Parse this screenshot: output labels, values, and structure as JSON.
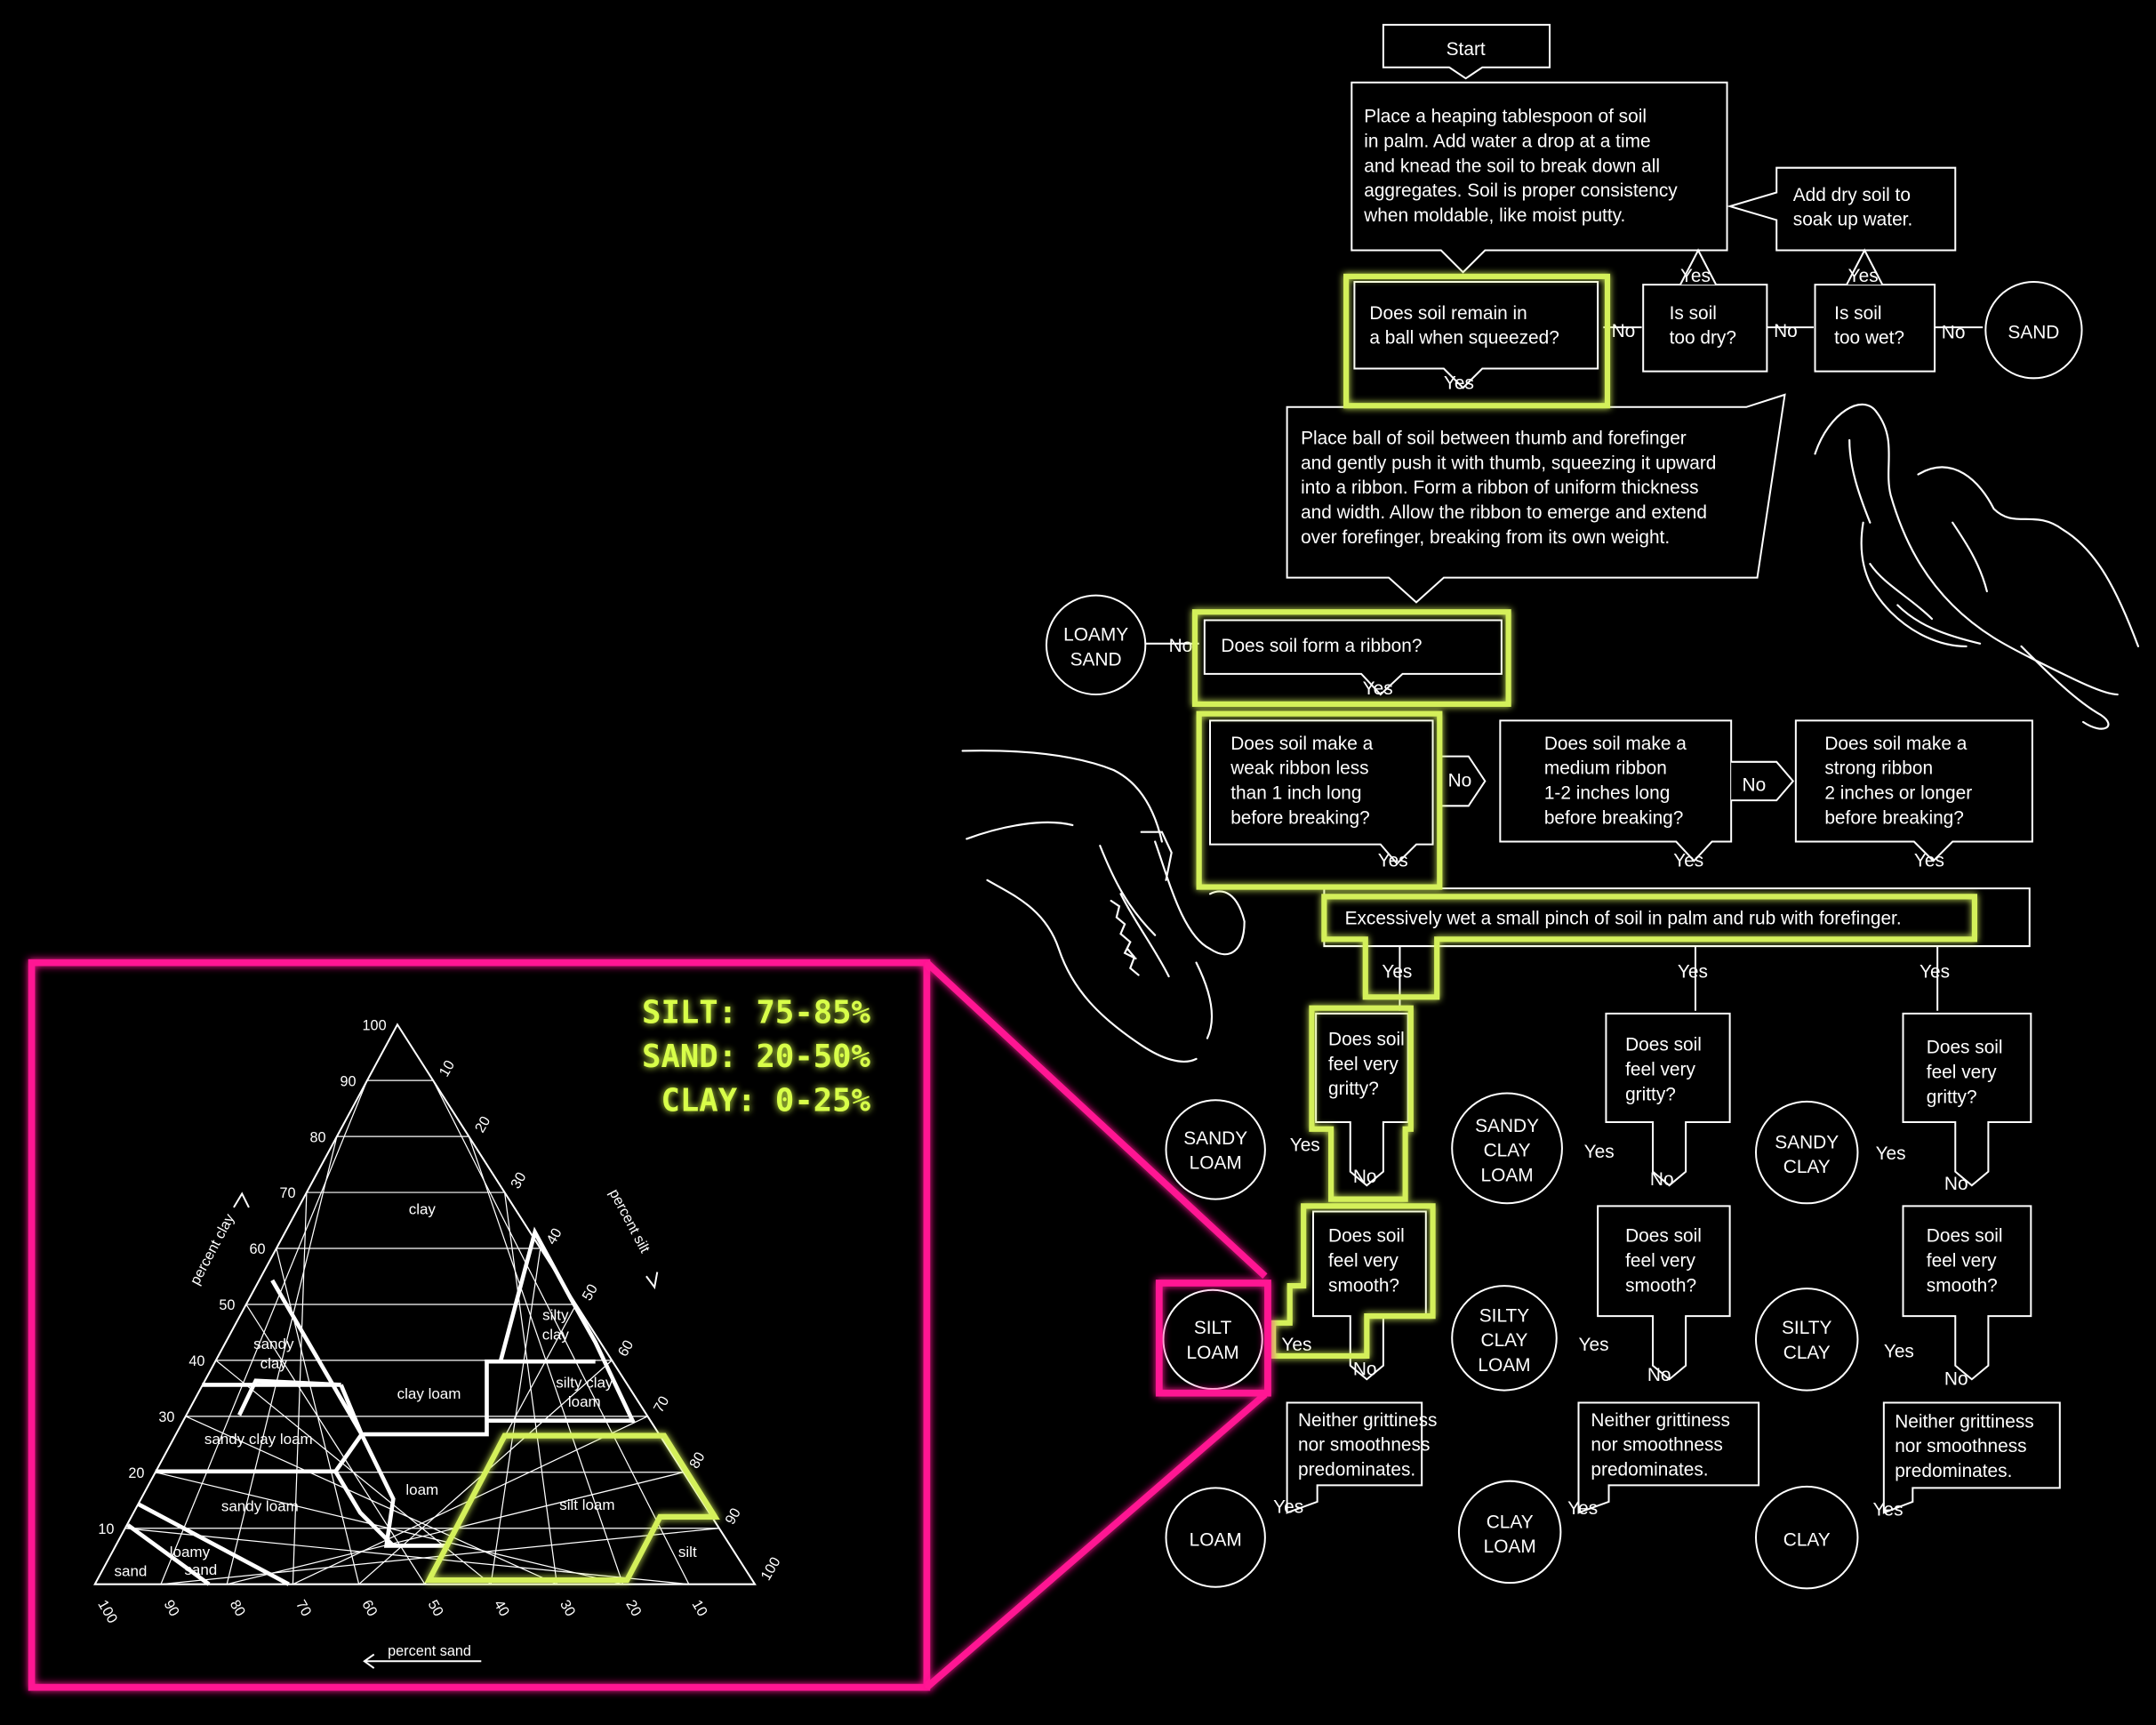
{
  "flowchart": {
    "start": "Start",
    "step1": [
      "Place a heaping tablespoon of soil",
      "in palm.  Add water a drop at a time",
      "and knead the soil to break down all",
      "aggregates.  Soil is proper consistency",
      "when moldable, like moist putty."
    ],
    "add_dry": [
      "Add dry soil to",
      "soak up water."
    ],
    "q_ball": [
      "Does soil remain in",
      "a ball when squeezed?"
    ],
    "q_too_dry": [
      "Is soil",
      "too dry?"
    ],
    "q_too_wet": [
      "Is soil",
      "too wet?"
    ],
    "sand": "SAND",
    "step2": [
      "Place ball of soil between thumb and forefinger",
      "and gently push it with thumb, squeezing it upward",
      "into a ribbon. Form a ribbon of uniform thickness",
      "and width. Allow the ribbon to emerge and extend",
      "over forefinger, breaking from its own weight."
    ],
    "loamy_sand": [
      "LOAMY",
      "SAND"
    ],
    "q_ribbon": "Does soil form a ribbon?",
    "q_weak": [
      "Does soil make a",
      "weak ribbon less",
      "than 1 inch long",
      "before breaking?"
    ],
    "q_medium": [
      "Does soil make a",
      "medium ribbon",
      "1-2 inches long",
      "before breaking?"
    ],
    "q_strong": [
      "Does soil make a",
      "strong ribbon",
      "2 inches or longer",
      "before breaking?"
    ],
    "step3": "Excessively wet a small pinch of soil in palm and rub with forefinger.",
    "q_gritty": [
      "Does soil",
      "feel very",
      "gritty?"
    ],
    "q_smooth": [
      "Does soil",
      "feel very",
      "smooth?"
    ],
    "neither": [
      "Neither grittiness",
      "nor smoothness",
      "predominates."
    ],
    "res": {
      "sandy_loam": [
        "SANDY",
        "LOAM"
      ],
      "sandy_clay_loam": [
        "SANDY",
        "CLAY",
        "LOAM"
      ],
      "sandy_clay": [
        "SANDY",
        "CLAY"
      ],
      "silt_loam": [
        "SILT",
        "LOAM"
      ],
      "silty_clay_loam": [
        "SILTY",
        "CLAY",
        "LOAM"
      ],
      "silty_clay": [
        "SILTY",
        "CLAY"
      ],
      "loam": "LOAM",
      "clay_loam": [
        "CLAY",
        "LOAM"
      ],
      "clay": "CLAY"
    },
    "yes": "Yes",
    "no": "No"
  },
  "inset": {
    "stats": [
      "SILT: 75-85%",
      "SAND: 20-50%",
      "CLAY: 0-25%"
    ],
    "ticks": [
      "100",
      "90",
      "80",
      "70",
      "60",
      "50",
      "40",
      "30",
      "20",
      "10"
    ],
    "axis_clay": "percent clay",
    "axis_silt": "percent silt",
    "axis_sand": "percent sand",
    "regions": {
      "clay": "clay",
      "sandy_clay": [
        "sandy",
        "clay"
      ],
      "silty_clay": [
        "silty",
        "clay"
      ],
      "clay_loam": "clay loam",
      "silty_clay_loam": [
        "silty clay",
        "loam"
      ],
      "sandy_clay_loam": "sandy clay loam",
      "loam": "loam",
      "sandy_loam": "sandy loam",
      "silt_loam": "silt loam",
      "loamy_sand": [
        "loamy",
        "sand"
      ],
      "sand": "sand",
      "silt": "silt"
    }
  },
  "colors": {
    "highlight": "#d4f05a",
    "inset_border": "#ff1493",
    "background": "#000000"
  }
}
